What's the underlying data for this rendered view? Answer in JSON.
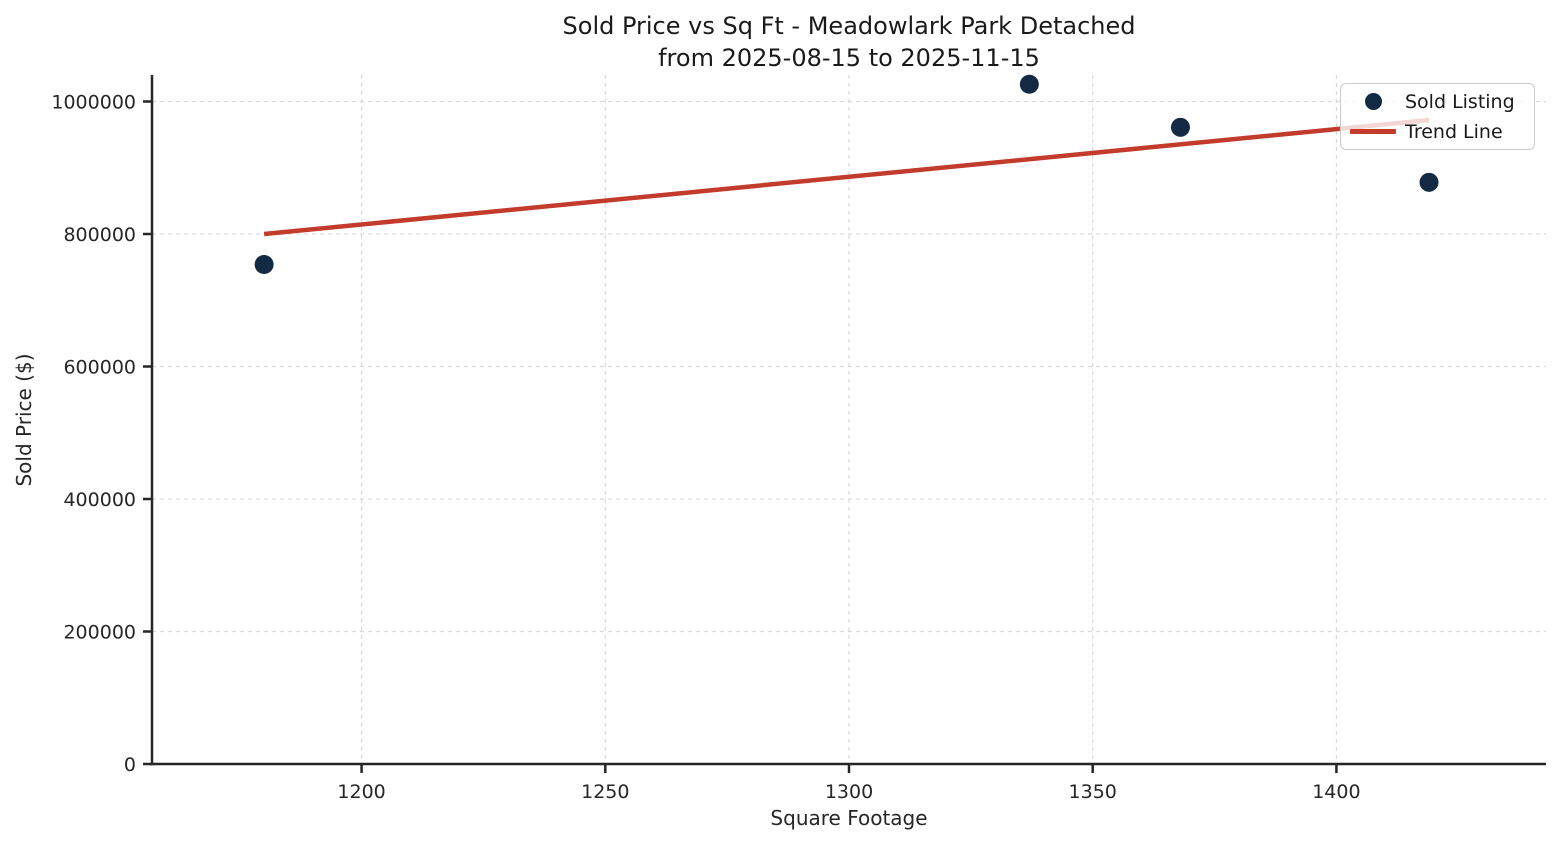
{
  "chart_data": {
    "type": "scatter",
    "title": "Sold Price vs Sq Ft - Meadowlark Park Detached",
    "subtitle": "from 2025-08-15 to 2025-11-15",
    "xlabel": "Square Footage",
    "ylabel": "Sold Price ($)",
    "xlim": [
      1157,
      1443
    ],
    "ylim": [
      0,
      1040000
    ],
    "x_ticks": [
      1200,
      1250,
      1300,
      1350,
      1400
    ],
    "y_ticks": [
      0,
      200000,
      400000,
      600000,
      800000,
      1000000
    ],
    "grid": true,
    "grid_style": "dashed",
    "legend_position": "upper right",
    "series": [
      {
        "name": "Sold Listing",
        "kind": "scatter",
        "color": "#132a44",
        "points": [
          {
            "sqft": 1180,
            "price": 754000
          },
          {
            "sqft": 1337,
            "price": 1026000
          },
          {
            "sqft": 1368,
            "price": 961000
          },
          {
            "sqft": 1419,
            "price": 878000
          }
        ]
      },
      {
        "name": "Trend Line",
        "kind": "line",
        "color": "#c23b2b",
        "points": [
          {
            "sqft": 1180,
            "price": 800000
          },
          {
            "sqft": 1419,
            "price": 972000
          }
        ]
      }
    ]
  },
  "colors": {
    "scatter": "#132a44",
    "trend": "#c23b2b",
    "gridline": "#d9d9d9",
    "spine": "#262626",
    "tick_text": "#262626",
    "title_text": "#1a1a1a",
    "legend_border": "#cccccc"
  }
}
